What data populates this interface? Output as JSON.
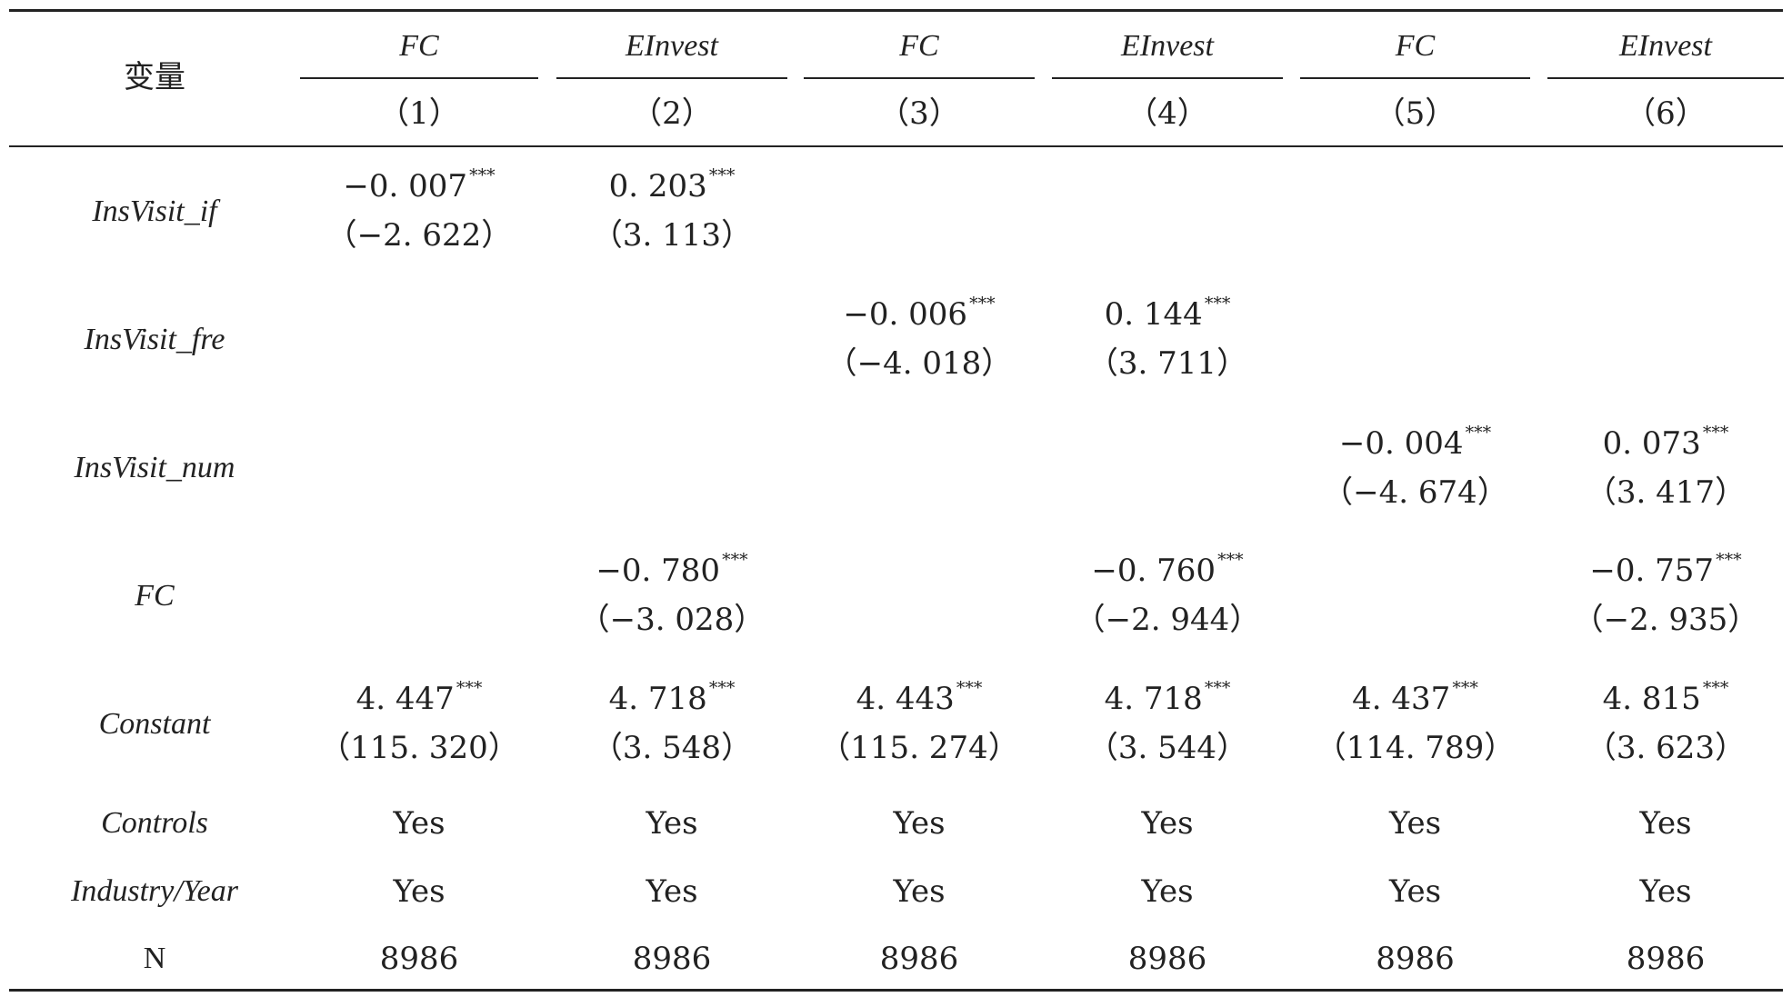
{
  "header": {
    "variable_label": "变量",
    "columns": [
      {
        "name": "FC",
        "number": "（1）"
      },
      {
        "name": "EInvest",
        "number": "（2）"
      },
      {
        "name": "FC",
        "number": "（3）"
      },
      {
        "name": "EInvest",
        "number": "（4）"
      },
      {
        "name": "FC",
        "number": "（5）"
      },
      {
        "name": "EInvest",
        "number": "（6）"
      }
    ]
  },
  "rows": [
    {
      "label": "InsVisit_if",
      "cells": [
        {
          "coef": "−0. 007",
          "stars": "***",
          "t": "（−2. 622）"
        },
        {
          "coef": "0. 203",
          "stars": "***",
          "t": "（3. 113）"
        },
        {
          "coef": "",
          "stars": "",
          "t": ""
        },
        {
          "coef": "",
          "stars": "",
          "t": ""
        },
        {
          "coef": "",
          "stars": "",
          "t": ""
        },
        {
          "coef": "",
          "stars": "",
          "t": ""
        }
      ]
    },
    {
      "label": "InsVisit_fre",
      "cells": [
        {
          "coef": "",
          "stars": "",
          "t": ""
        },
        {
          "coef": "",
          "stars": "",
          "t": ""
        },
        {
          "coef": "−0. 006",
          "stars": "***",
          "t": "（−4. 018）"
        },
        {
          "coef": "0. 144",
          "stars": "***",
          "t": "（3. 711）"
        },
        {
          "coef": "",
          "stars": "",
          "t": ""
        },
        {
          "coef": "",
          "stars": "",
          "t": ""
        }
      ]
    },
    {
      "label": "InsVisit_num",
      "cells": [
        {
          "coef": "",
          "stars": "",
          "t": ""
        },
        {
          "coef": "",
          "stars": "",
          "t": ""
        },
        {
          "coef": "",
          "stars": "",
          "t": ""
        },
        {
          "coef": "",
          "stars": "",
          "t": ""
        },
        {
          "coef": "−0. 004",
          "stars": "***",
          "t": "（−4. 674）"
        },
        {
          "coef": "0. 073",
          "stars": "***",
          "t": "（3. 417）"
        }
      ]
    },
    {
      "label": "FC",
      "cells": [
        {
          "coef": "",
          "stars": "",
          "t": ""
        },
        {
          "coef": "−0. 780",
          "stars": "***",
          "t": "（−3. 028）"
        },
        {
          "coef": "",
          "stars": "",
          "t": ""
        },
        {
          "coef": "−0. 760",
          "stars": "***",
          "t": "（−2. 944）"
        },
        {
          "coef": "",
          "stars": "",
          "t": ""
        },
        {
          "coef": "−0. 757",
          "stars": "***",
          "t": "（−2. 935）"
        }
      ]
    },
    {
      "label": "Constant",
      "cells": [
        {
          "coef": "4. 447",
          "stars": "***",
          "t": "（115. 320）"
        },
        {
          "coef": "4. 718",
          "stars": "***",
          "t": "（3. 548）"
        },
        {
          "coef": "4. 443",
          "stars": "***",
          "t": "（115. 274）"
        },
        {
          "coef": "4. 718",
          "stars": "***",
          "t": "（3. 544）"
        },
        {
          "coef": "4. 437",
          "stars": "***",
          "t": "（114. 789）"
        },
        {
          "coef": "4. 815",
          "stars": "***",
          "t": "（3. 623）"
        }
      ]
    }
  ],
  "footer_rows": [
    {
      "label": "Controls",
      "values": [
        "Yes",
        "Yes",
        "Yes",
        "Yes",
        "Yes",
        "Yes"
      ]
    },
    {
      "label": "Industry/Year",
      "values": [
        "Yes",
        "Yes",
        "Yes",
        "Yes",
        "Yes",
        "Yes"
      ]
    },
    {
      "label": "N",
      "values": [
        "8986",
        "8986",
        "8986",
        "8986",
        "8986",
        "8986"
      ]
    }
  ]
}
